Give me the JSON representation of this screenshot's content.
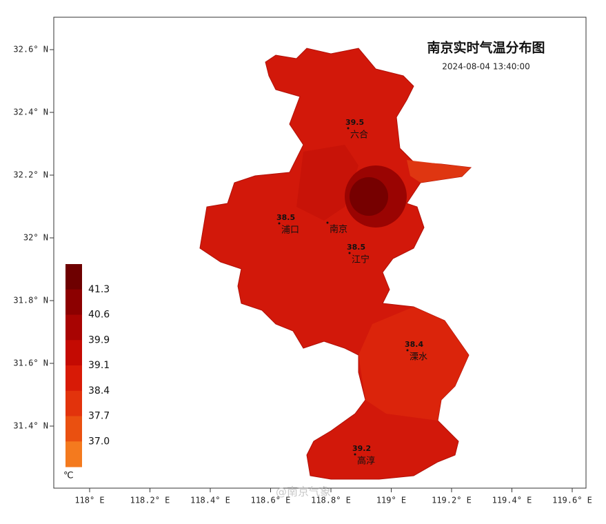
{
  "header": {
    "title": "南京实时气温分布图",
    "timestamp": "2024-08-04 13:40:00"
  },
  "lat_ticks": [
    {
      "value": 32.6,
      "label": "32.6° N"
    },
    {
      "value": 32.4,
      "label": "32.4° N"
    },
    {
      "value": 32.2,
      "label": "32.2° N"
    },
    {
      "value": 32,
      "label": "32° N"
    },
    {
      "value": 31.8,
      "label": "31.8° N"
    },
    {
      "value": 31.6,
      "label": "31.6° N"
    },
    {
      "value": 31.4,
      "label": "31.4° N"
    }
  ],
  "lon_ticks": [
    {
      "value": 118,
      "label": "118° E"
    },
    {
      "value": 118.2,
      "label": "118.2° E"
    },
    {
      "value": 118.4,
      "label": "118.4° E"
    },
    {
      "value": 118.6,
      "label": "118.6° E"
    },
    {
      "value": 118.8,
      "label": "118.8° E"
    },
    {
      "value": 119,
      "label": "119° E"
    },
    {
      "value": 119.2,
      "label": "119.2° E"
    },
    {
      "value": 119.4,
      "label": "119.4° E"
    },
    {
      "value": 119.6,
      "label": "119.6° E"
    }
  ],
  "legend": {
    "unit": "℃",
    "labels": [
      "41.3",
      "40.6",
      "39.9",
      "39.1",
      "38.4",
      "37.7",
      "37.0"
    ],
    "colors": [
      "#6e0000",
      "#8c0000",
      "#a80402",
      "#c40a02",
      "#d81a06",
      "#e2330c",
      "#ea5010",
      "#f47a1e"
    ]
  },
  "stations": [
    {
      "name": "六合",
      "value": "39.5"
    },
    {
      "name": "浦口",
      "value": "38.5"
    },
    {
      "name": "南京"
    },
    {
      "name": "江宁",
      "value": "38.5"
    },
    {
      "name": "溧水",
      "value": "38.4"
    },
    {
      "name": "高淳",
      "value": "39.2"
    }
  ],
  "watermark": "@南京气象"
}
